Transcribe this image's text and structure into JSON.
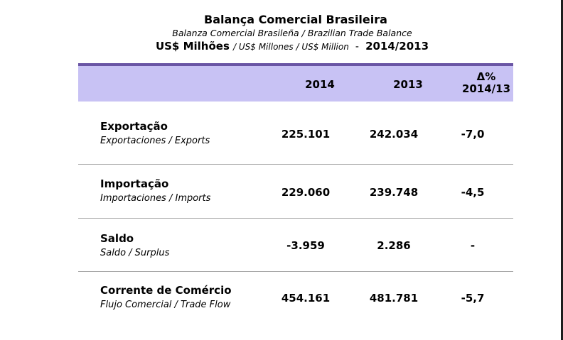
{
  "header": {
    "title": "Balança Comercial Brasileira",
    "subtitle": "Balanza Comercial Brasileña / Brazilian Trade Balance",
    "unit_main": "US$ Milhões",
    "unit_alt": "/ US$ Millones / US$ Million",
    "separator": "-",
    "period": "2014/2013"
  },
  "table": {
    "columns": {
      "col_2014": "2014",
      "col_2013": "2013",
      "delta_line1": "Δ%",
      "delta_line2": "2014/13"
    },
    "rows": [
      {
        "pt": "Exportação",
        "translation": "Exportaciones / Exports",
        "v2014": "225.101",
        "v2013": "242.034",
        "delta": "-7,0"
      },
      {
        "pt": "Importação",
        "translation": "Importaciones / Imports",
        "v2014": "229.060",
        "v2013": "239.748",
        "delta": "-4,5"
      },
      {
        "pt": "Saldo",
        "translation": "Saldo / Surplus",
        "v2014": "-3.959",
        "v2013": "2.286",
        "delta": "-"
      },
      {
        "pt": "Corrente de Comércio",
        "translation": "Flujo Comercial / Trade Flow",
        "v2014": "454.161",
        "v2013": "481.781",
        "delta": "-5,7"
      }
    ]
  },
  "colors": {
    "header_fill": "#c8c2f4",
    "header_rule": "#6a55a4",
    "row_divider": "#a9a9a9"
  }
}
